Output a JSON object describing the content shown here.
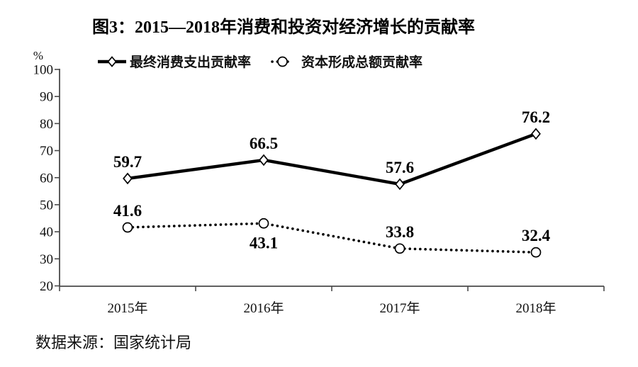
{
  "chart_data": {
    "type": "line",
    "title": "图3：2015—2018年消费和投资对经济增长的贡献率",
    "y_unit_label": "%",
    "categories": [
      "2015年",
      "2016年",
      "2017年",
      "2018年"
    ],
    "series": [
      {
        "name": "最终消费支出贡献率",
        "marker": "diamond",
        "line_style": "solid",
        "values": [
          59.7,
          66.5,
          57.6,
          76.2
        ],
        "value_labels": [
          "59.7",
          "66.5",
          "57.6",
          "76.2"
        ],
        "label_positions": [
          "above",
          "above",
          "above",
          "above"
        ]
      },
      {
        "name": "资本形成总额贡献率",
        "marker": "circle",
        "line_style": "dotted",
        "values": [
          41.6,
          43.1,
          33.8,
          32.4
        ],
        "value_labels": [
          "41.6",
          "43.1",
          "33.8",
          "32.4"
        ],
        "label_positions": [
          "above",
          "below",
          "above",
          "above"
        ]
      }
    ],
    "ylim": [
      20,
      100
    ],
    "ytick_step": 10,
    "grid": false,
    "legend_position": "top"
  },
  "footer": {
    "source_label": "数据来源：国家统计局"
  },
  "colors": {
    "line": "#000000",
    "axis": "#4a4a4a",
    "text": "#000000",
    "background": "#ffffff"
  }
}
